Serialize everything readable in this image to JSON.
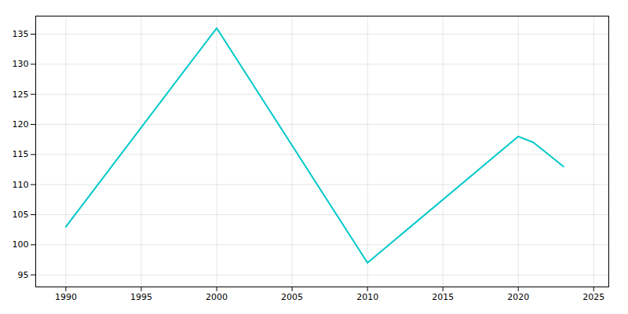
{
  "chart_data": {
    "type": "line",
    "x": [
      1990,
      2000,
      2010,
      2020,
      2021,
      2022,
      2023
    ],
    "values": [
      103,
      136,
      97,
      118,
      117,
      115,
      113
    ],
    "color": "#00C8C8",
    "xlim": [
      1988,
      2026
    ],
    "ylim": [
      93,
      138
    ],
    "xticks": [
      1990,
      1995,
      2000,
      2005,
      2010,
      2015,
      2020,
      2025
    ],
    "yticks": [
      95,
      100,
      105,
      110,
      115,
      120,
      125,
      130,
      135
    ],
    "grid": true
  }
}
